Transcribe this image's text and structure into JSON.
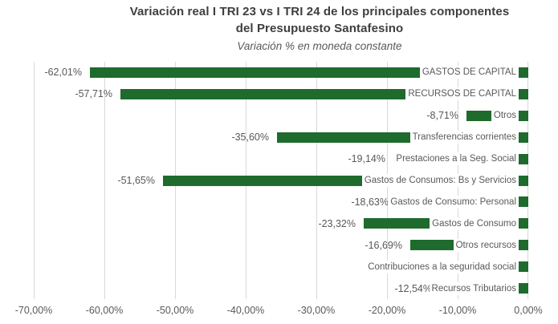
{
  "title": {
    "line1": "Variación real I TRI 23 vs I TRI 24 de los principales componentes",
    "line2": "del Presupuesto Santafesino",
    "subtitle": "Variación % en moneda constante"
  },
  "chart_data": {
    "type": "bar",
    "orientation": "horizontal",
    "title": "Variación real I TRI 23 vs I TRI 24 de los principales componentes del Presupuesto Santafesino",
    "subtitle": "Variación % en moneda constante",
    "unit": "percent",
    "xlim": [
      -70,
      0
    ],
    "x_tick_labels": [
      "-70,00%",
      "-60,00%",
      "-50,00%",
      "-40,00%",
      "-30,00%",
      "-20,00%",
      "-10,00%",
      "0,00%"
    ],
    "grid": true,
    "legend": false,
    "categories": [
      "GASTOS DE CAPITAL",
      "RECURSOS DE CAPITAL",
      "Otros",
      "Transferencias corrientes",
      "Prestaciones a la Seg. Social",
      "Gastos de Consumos: Bs y Servicios",
      "Gastos de Consumo: Personal",
      "Gastos de Consumo",
      "Otros recursos",
      "Contribuciones a la seguridad social",
      "Recursos Tributarios"
    ],
    "values": [
      -62.01,
      -57.71,
      -8.71,
      -35.6,
      -19.14,
      -51.65,
      -18.63,
      -23.32,
      -16.69,
      null,
      -12.54
    ],
    "value_labels": [
      "-62,01%",
      "-57,71%",
      "-8,71%",
      "-35,60%",
      "-19,14%",
      "-51,65%",
      "-18,63%",
      "-23,32%",
      "-16,69%",
      "",
      "-12,54%"
    ],
    "colors": {
      "bar": "#1e6b2d",
      "label": "#595959",
      "title": "#3e3e3e",
      "gridline": "#d9d9d9",
      "background": "#ffffff"
    }
  }
}
